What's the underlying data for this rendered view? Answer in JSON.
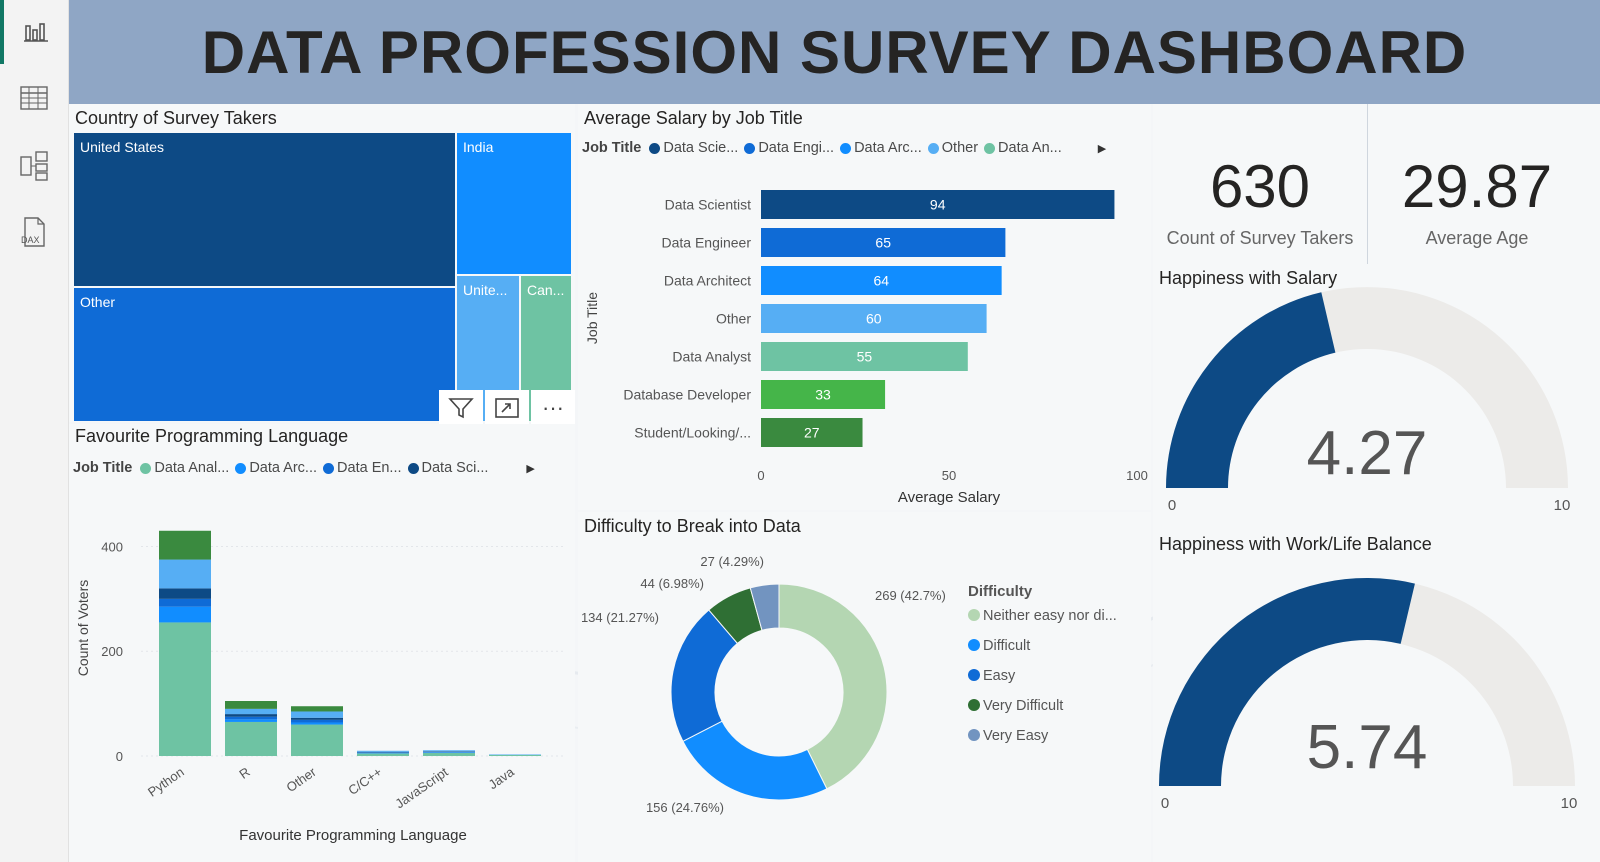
{
  "header": {
    "title": "DATA PROFESSION SURVEY DASHBOARD"
  },
  "sidebar": {
    "items": [
      {
        "name": "report-view",
        "icon": "bar-chart-icon",
        "active": true
      },
      {
        "name": "table-view",
        "icon": "table-icon"
      },
      {
        "name": "model-view",
        "icon": "model-icon"
      },
      {
        "name": "dax-view",
        "icon": "dax-icon",
        "label": "DAX"
      }
    ]
  },
  "treemap": {
    "title": "Country of Survey Takers",
    "labels": [
      "United States",
      "India",
      "Other",
      "Unite...",
      "Can..."
    ],
    "colors": [
      "#0d4a85",
      "#118dff",
      "#0f6bd6",
      "#56aef4",
      "#6ec3a3"
    ]
  },
  "visual_toolbar": {
    "filter_icon": "filter-icon",
    "focus_icon": "focus-mode-icon",
    "more_label": "···"
  },
  "salary": {
    "title": "Average Salary by Job Title",
    "legend_title": "Job Title",
    "legend": [
      {
        "label": "Data Scie...",
        "color": "#0d4a85"
      },
      {
        "label": "Data Engi...",
        "color": "#0f6bd6"
      },
      {
        "label": "Data Arc...",
        "color": "#118dff"
      },
      {
        "label": "Other",
        "color": "#56aef4"
      },
      {
        "label": "Data An...",
        "color": "#6ec3a3"
      }
    ]
  },
  "languages": {
    "title": "Favourite Programming Language",
    "legend_title": "Job Title",
    "legend": [
      {
        "label": "Data Anal...",
        "color": "#6ec3a3"
      },
      {
        "label": "Data Arc...",
        "color": "#118dff"
      },
      {
        "label": "Data En...",
        "color": "#0f6bd6"
      },
      {
        "label": "Data Sci...",
        "color": "#0d4a85"
      }
    ]
  },
  "difficulty": {
    "title": "Difficulty to Break into Data",
    "legend_title": "Difficulty"
  },
  "kpis": {
    "count_value": "630",
    "count_label": "Count of Survey Takers",
    "age_value": "29.87",
    "age_label": "Average Age"
  },
  "gauges": {
    "salary_title": "Happiness with Salary",
    "salary_value": "4.27",
    "salary_fraction": 0.427,
    "wlb_title": "Happiness with Work/Life Balance",
    "wlb_value": "5.74",
    "wlb_fraction": 0.574,
    "min_label": "0",
    "max_label": "10",
    "fill_color": "#0d4a85",
    "track_color": "#ecebe9"
  },
  "chart_data": [
    {
      "type": "bar",
      "orientation": "horizontal",
      "title": "Average Salary by Job Title",
      "categories": [
        "Data Scientist",
        "Data Engineer",
        "Data Architect",
        "Other",
        "Data Analyst",
        "Database Developer",
        "Student/Looking/..."
      ],
      "values": [
        94,
        65,
        64,
        60,
        55,
        33,
        27
      ],
      "colors": [
        "#0d4a85",
        "#0f6bd6",
        "#118dff",
        "#56aef4",
        "#6ec3a3",
        "#45b549",
        "#3a8a3f"
      ],
      "xlabel": "Average Salary",
      "ylabel": "Job Title",
      "xlim": [
        0,
        100
      ],
      "xticks": [
        "0",
        "50",
        "100"
      ]
    },
    {
      "type": "bar",
      "stacked": true,
      "title": "Favourite Programming Language",
      "categories": [
        "Python",
        "R",
        "Other",
        "C/C++",
        "JavaScript",
        "Java"
      ],
      "series": [
        {
          "name": "Data Anal...",
          "color": "#6ec3a3",
          "values": [
            255,
            65,
            60,
            5,
            6,
            2
          ]
        },
        {
          "name": "Data Arc...",
          "color": "#118dff",
          "values": [
            30,
            5,
            4,
            1,
            1,
            0
          ]
        },
        {
          "name": "Data En...",
          "color": "#0f6bd6",
          "values": [
            15,
            5,
            5,
            1,
            1,
            0
          ]
        },
        {
          "name": "Data Sci...",
          "color": "#0d4a85",
          "values": [
            20,
            5,
            4,
            1,
            1,
            0
          ]
        },
        {
          "color": "#56aef4",
          "values": [
            55,
            10,
            12,
            2,
            2,
            1
          ]
        },
        {
          "color": "#3a8a3f",
          "values": [
            55,
            15,
            10,
            0,
            0,
            0
          ]
        }
      ],
      "xlabel": "Favourite Programming Language",
      "ylabel": "Count of Voters",
      "ylim": [
        0,
        420
      ],
      "yticks": [
        "0",
        "200",
        "400"
      ]
    },
    {
      "type": "pie",
      "donut": true,
      "title": "Difficulty to Break into Data",
      "slices": [
        {
          "label": "Neither easy nor di...",
          "value": 269,
          "data_label": "269 (42.7%)",
          "color": "#b4d6b2"
        },
        {
          "label": "Difficult",
          "value": 156,
          "data_label": "156 (24.76%)",
          "color": "#118dff"
        },
        {
          "label": "Easy",
          "value": 134,
          "data_label": "134 (21.27%)",
          "color": "#0f6bd6"
        },
        {
          "label": "Very Difficult",
          "value": 44,
          "data_label": "44 (6.98%)",
          "color": "#2f6f34"
        },
        {
          "label": "Very Easy",
          "value": 27,
          "data_label": "27 (4.29%)",
          "color": "#7294c0"
        }
      ]
    }
  ]
}
